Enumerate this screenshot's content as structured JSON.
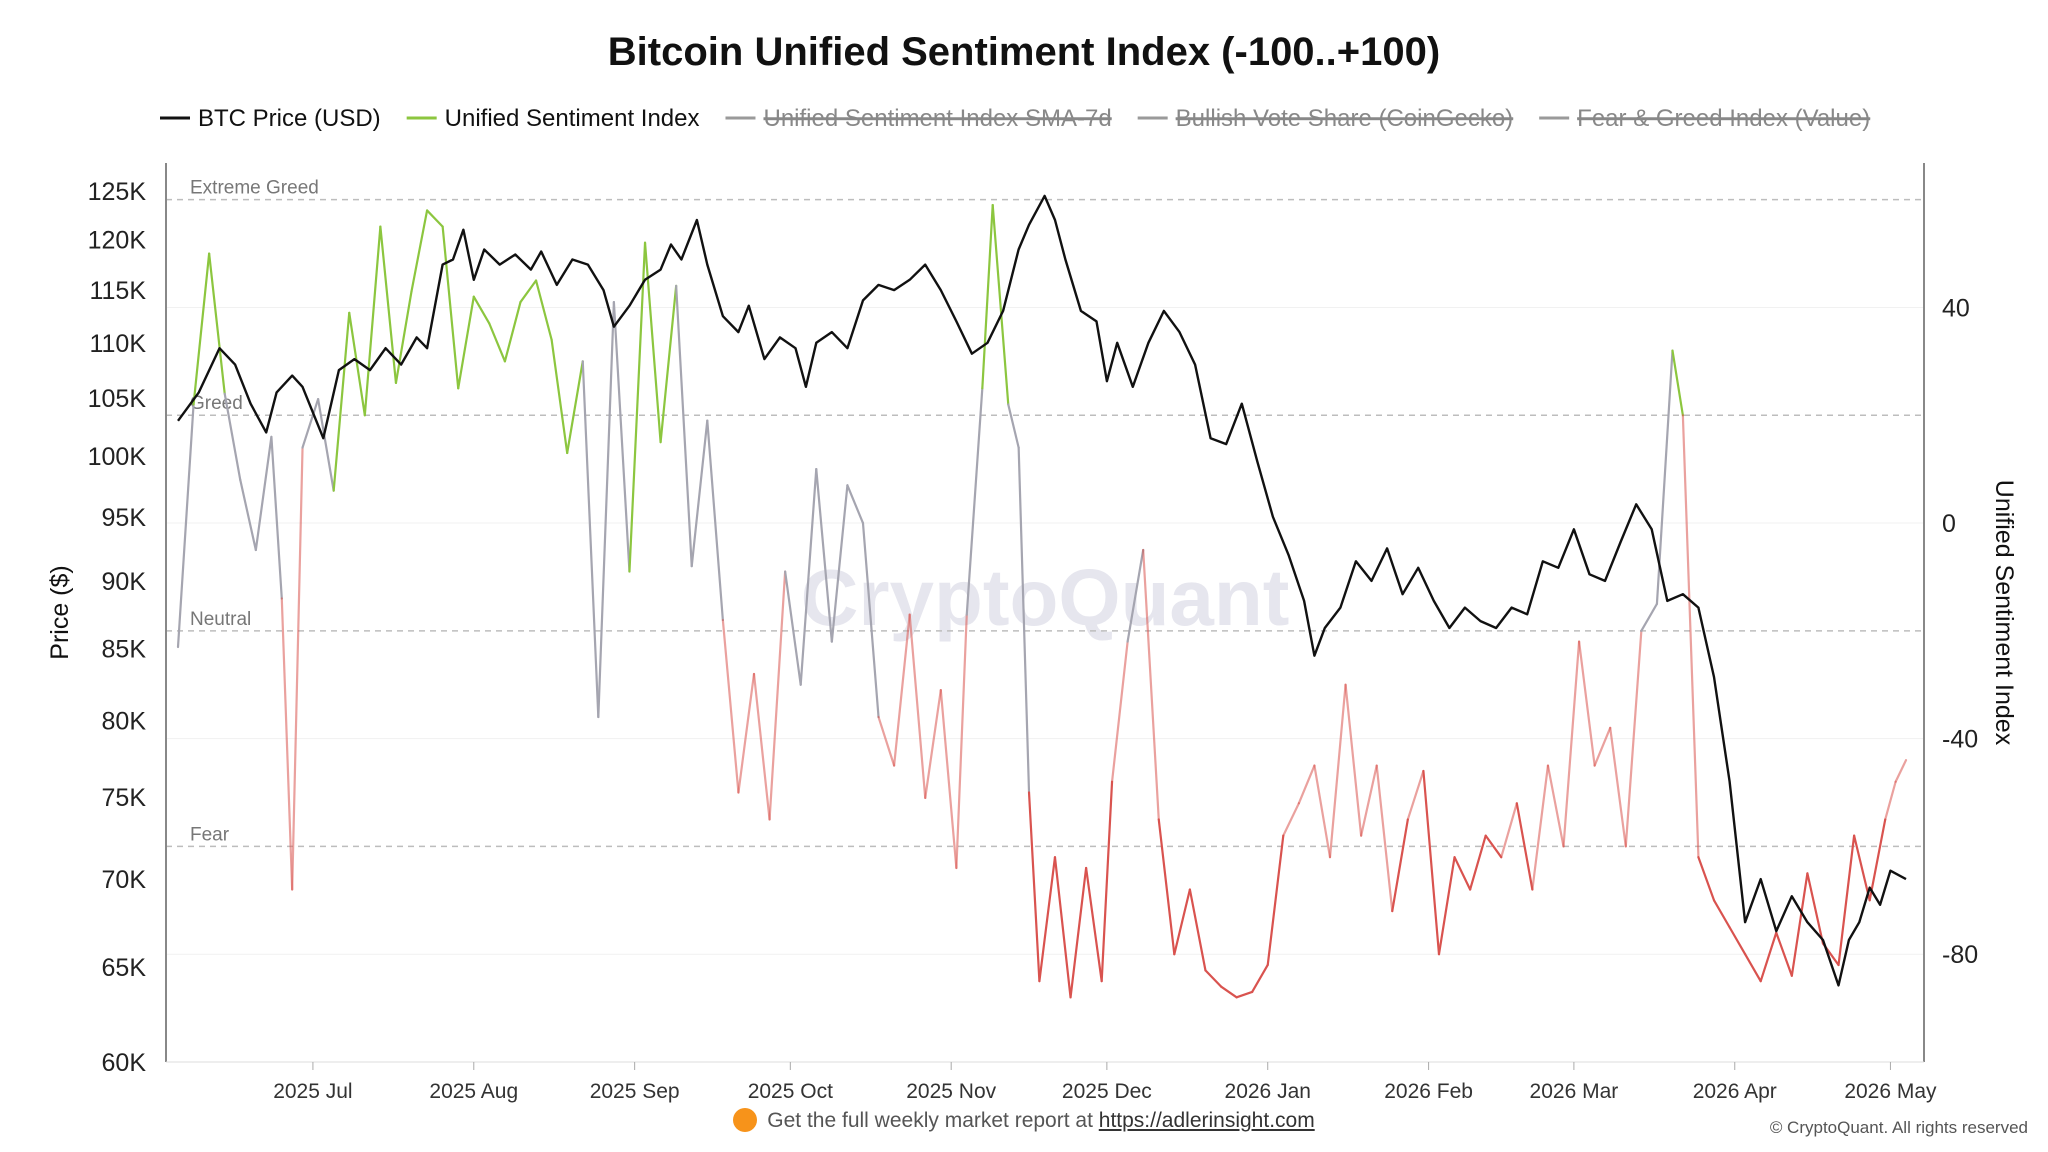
{
  "title": "Bitcoin Unified Sentiment Index (-100..+100)",
  "footer": {
    "text": "Get the full weekly market report at",
    "link": "https://adlerinsight.com",
    "copyright": "© CryptoQuant. All rights reserved"
  },
  "watermark": "CryptoQuant",
  "chart_data": {
    "type": "line",
    "legend_placement": "top",
    "grid": true,
    "y_left": {
      "label": "Price ($)",
      "scale": "log",
      "ticks": [
        60000,
        65000,
        70000,
        75000,
        80000,
        85000,
        90000,
        95000,
        100000,
        105000,
        110000,
        115000,
        120000,
        125000
      ],
      "tick_labels": [
        "60K",
        "65K",
        "70K",
        "75K",
        "80K",
        "85K",
        "90K",
        "95K",
        "100K",
        "105K",
        "110K",
        "115K",
        "120K",
        "125K"
      ],
      "range": [
        60000,
        128000
      ]
    },
    "y_right": {
      "label": "Unified Sentiment Index",
      "ticks": [
        40,
        0,
        -40,
        -80
      ],
      "tick_labels": [
        "40",
        "0",
        "-40",
        "-80"
      ],
      "range": [
        -100,
        66.8
      ]
    },
    "x": {
      "start": "2025-06-05",
      "end": "2026-05-04",
      "ticks": [
        "2025-07-01",
        "2025-08-01",
        "2025-09-01",
        "2025-10-01",
        "2025-11-01",
        "2025-12-01",
        "2026-01-01",
        "2026-02-01",
        "2026-03-01",
        "2026-04-01",
        "2026-05-01"
      ],
      "tick_labels": [
        "2025 Jul",
        "2025 Aug",
        "2025 Sep",
        "2025 Oct",
        "2025 Nov",
        "2025 Dec",
        "2026 Jan",
        "2026 Feb",
        "2026 Mar",
        "2026 Apr",
        "2026 May"
      ]
    },
    "zones": [
      {
        "label": "Extreme Greed",
        "value": 60
      },
      {
        "label": "Greed",
        "value": 20
      },
      {
        "label": "Neutral",
        "value": -20
      },
      {
        "label": "Fear",
        "value": -60
      }
    ],
    "colors": {
      "price": "#111111",
      "greed": "#8cc63f",
      "fear": "#d9534f",
      "neutral": "#a5a5b0",
      "hidden": "#9a9a9a",
      "grid": "#f1f1f1",
      "zone_line": "#bdbdbd"
    },
    "series": [
      {
        "name": "BTC Price (USD)",
        "visible": true,
        "color": "#111111",
        "points": [
          [
            "2025-06-05",
            103000
          ],
          [
            "2025-06-09",
            105500
          ],
          [
            "2025-06-13",
            109500
          ],
          [
            "2025-06-16",
            108000
          ],
          [
            "2025-06-19",
            104500
          ],
          [
            "2025-06-22",
            102000
          ],
          [
            "2025-06-24",
            105500
          ],
          [
            "2025-06-27",
            107000
          ],
          [
            "2025-06-29",
            106000
          ],
          [
            "2025-07-03",
            101500
          ],
          [
            "2025-07-06",
            107500
          ],
          [
            "2025-07-09",
            108500
          ],
          [
            "2025-07-12",
            107500
          ],
          [
            "2025-07-15",
            109500
          ],
          [
            "2025-07-18",
            108000
          ],
          [
            "2025-07-21",
            110500
          ],
          [
            "2025-07-23",
            109500
          ],
          [
            "2025-07-26",
            117500
          ],
          [
            "2025-07-28",
            118000
          ],
          [
            "2025-07-30",
            121000
          ],
          [
            "2025-08-01",
            116000
          ],
          [
            "2025-08-03",
            119000
          ],
          [
            "2025-08-06",
            117500
          ],
          [
            "2025-08-09",
            118500
          ],
          [
            "2025-08-12",
            117000
          ],
          [
            "2025-08-14",
            118800
          ],
          [
            "2025-08-17",
            115500
          ],
          [
            "2025-08-20",
            118000
          ],
          [
            "2025-08-23",
            117500
          ],
          [
            "2025-08-26",
            115000
          ],
          [
            "2025-08-28",
            111500
          ],
          [
            "2025-08-31",
            113500
          ],
          [
            "2025-09-03",
            116000
          ],
          [
            "2025-09-06",
            117000
          ],
          [
            "2025-09-08",
            119500
          ],
          [
            "2025-09-10",
            118000
          ],
          [
            "2025-09-13",
            122000
          ],
          [
            "2025-09-15",
            117500
          ],
          [
            "2025-09-18",
            112500
          ],
          [
            "2025-09-21",
            111000
          ],
          [
            "2025-09-23",
            113500
          ],
          [
            "2025-09-26",
            108500
          ],
          [
            "2025-09-29",
            110500
          ],
          [
            "2025-10-02",
            109500
          ],
          [
            "2025-10-04",
            106000
          ],
          [
            "2025-10-06",
            110000
          ],
          [
            "2025-10-09",
            111000
          ],
          [
            "2025-10-12",
            109500
          ],
          [
            "2025-10-15",
            114000
          ],
          [
            "2025-10-18",
            115500
          ],
          [
            "2025-10-21",
            115000
          ],
          [
            "2025-10-24",
            116000
          ],
          [
            "2025-10-27",
            117500
          ],
          [
            "2025-10-30",
            115000
          ],
          [
            "2025-11-02",
            112000
          ],
          [
            "2025-11-05",
            109000
          ],
          [
            "2025-11-08",
            110000
          ],
          [
            "2025-11-11",
            113000
          ],
          [
            "2025-11-14",
            119000
          ],
          [
            "2025-11-16",
            121500
          ],
          [
            "2025-11-19",
            124500
          ],
          [
            "2025-11-21",
            122000
          ],
          [
            "2025-11-23",
            118000
          ],
          [
            "2025-11-26",
            113000
          ],
          [
            "2025-11-29",
            112000
          ],
          [
            "2025-12-01",
            106500
          ],
          [
            "2025-12-03",
            110000
          ],
          [
            "2025-12-06",
            106000
          ],
          [
            "2025-12-09",
            110000
          ],
          [
            "2025-12-12",
            113000
          ],
          [
            "2025-12-15",
            111000
          ],
          [
            "2025-12-18",
            108000
          ],
          [
            "2025-12-21",
            101500
          ],
          [
            "2025-12-24",
            101000
          ],
          [
            "2025-12-27",
            104500
          ],
          [
            "2025-12-30",
            99500
          ],
          [
            "2026-01-02",
            95000
          ],
          [
            "2026-01-05",
            92000
          ],
          [
            "2026-01-08",
            88500
          ],
          [
            "2026-01-10",
            84500
          ],
          [
            "2026-01-12",
            86500
          ],
          [
            "2026-01-15",
            88000
          ],
          [
            "2026-01-18",
            91500
          ],
          [
            "2026-01-21",
            90000
          ],
          [
            "2026-01-24",
            92500
          ],
          [
            "2026-01-27",
            89000
          ],
          [
            "2026-01-30",
            91000
          ],
          [
            "2026-02-02",
            88500
          ],
          [
            "2026-02-05",
            86500
          ],
          [
            "2026-02-08",
            88000
          ],
          [
            "2026-02-11",
            87000
          ],
          [
            "2026-02-14",
            86500
          ],
          [
            "2026-02-17",
            88000
          ],
          [
            "2026-02-20",
            87500
          ],
          [
            "2026-02-23",
            91500
          ],
          [
            "2026-02-26",
            91000
          ],
          [
            "2026-03-01",
            94000
          ],
          [
            "2026-03-04",
            90500
          ],
          [
            "2026-03-07",
            90000
          ],
          [
            "2026-03-10",
            93000
          ],
          [
            "2026-03-13",
            96000
          ],
          [
            "2026-03-16",
            94000
          ],
          [
            "2026-03-19",
            88500
          ],
          [
            "2026-03-22",
            89000
          ],
          [
            "2026-03-25",
            88000
          ],
          [
            "2026-03-28",
            83000
          ],
          [
            "2026-03-31",
            76000
          ],
          [
            "2026-04-03",
            67500
          ],
          [
            "2026-04-06",
            70000
          ],
          [
            "2026-04-09",
            67000
          ],
          [
            "2026-04-12",
            69000
          ],
          [
            "2026-04-15",
            67500
          ],
          [
            "2026-04-18",
            66500
          ],
          [
            "2026-04-21",
            64000
          ],
          [
            "2026-04-23",
            66500
          ],
          [
            "2026-04-25",
            67500
          ],
          [
            "2026-04-27",
            69500
          ],
          [
            "2026-04-29",
            68500
          ],
          [
            "2026-05-01",
            70500
          ],
          [
            "2026-05-04",
            70000
          ]
        ]
      },
      {
        "name": "Unified Sentiment Index",
        "visible": true,
        "color": "#8cc63f",
        "points": [
          [
            "2025-06-05",
            -23
          ],
          [
            "2025-06-08",
            22
          ],
          [
            "2025-06-11",
            50
          ],
          [
            "2025-06-14",
            24
          ],
          [
            "2025-06-17",
            8
          ],
          [
            "2025-06-20",
            -5
          ],
          [
            "2025-06-23",
            16
          ],
          [
            "2025-06-25",
            -14
          ],
          [
            "2025-06-27",
            -68
          ],
          [
            "2025-06-29",
            14
          ],
          [
            "2025-07-02",
            23
          ],
          [
            "2025-07-05",
            6
          ],
          [
            "2025-07-08",
            39
          ],
          [
            "2025-07-11",
            20
          ],
          [
            "2025-07-14",
            55
          ],
          [
            "2025-07-17",
            26
          ],
          [
            "2025-07-20",
            43
          ],
          [
            "2025-07-23",
            58
          ],
          [
            "2025-07-26",
            55
          ],
          [
            "2025-07-29",
            25
          ],
          [
            "2025-08-01",
            42
          ],
          [
            "2025-08-04",
            37
          ],
          [
            "2025-08-07",
            30
          ],
          [
            "2025-08-10",
            41
          ],
          [
            "2025-08-13",
            45
          ],
          [
            "2025-08-16",
            34
          ],
          [
            "2025-08-19",
            13
          ],
          [
            "2025-08-22",
            30
          ],
          [
            "2025-08-25",
            -36
          ],
          [
            "2025-08-28",
            41
          ],
          [
            "2025-08-31",
            -9
          ],
          [
            "2025-09-03",
            52
          ],
          [
            "2025-09-06",
            15
          ],
          [
            "2025-09-09",
            44
          ],
          [
            "2025-09-12",
            -8
          ],
          [
            "2025-09-15",
            19
          ],
          [
            "2025-09-18",
            -18
          ],
          [
            "2025-09-21",
            -50
          ],
          [
            "2025-09-24",
            -28
          ],
          [
            "2025-09-27",
            -55
          ],
          [
            "2025-09-30",
            -9
          ],
          [
            "2025-10-03",
            -30
          ],
          [
            "2025-10-06",
            10
          ],
          [
            "2025-10-09",
            -22
          ],
          [
            "2025-10-12",
            7
          ],
          [
            "2025-10-15",
            0
          ],
          [
            "2025-10-18",
            -36
          ],
          [
            "2025-10-21",
            -45
          ],
          [
            "2025-10-24",
            -17
          ],
          [
            "2025-10-27",
            -51
          ],
          [
            "2025-10-30",
            -31
          ],
          [
            "2025-11-02",
            -64
          ],
          [
            "2025-11-04",
            -17
          ],
          [
            "2025-11-07",
            25
          ],
          [
            "2025-11-09",
            59
          ],
          [
            "2025-11-12",
            22
          ],
          [
            "2025-11-14",
            14
          ],
          [
            "2025-11-16",
            -50
          ],
          [
            "2025-11-18",
            -85
          ],
          [
            "2025-11-21",
            -62
          ],
          [
            "2025-11-24",
            -88
          ],
          [
            "2025-11-27",
            -64
          ],
          [
            "2025-11-30",
            -85
          ],
          [
            "2025-12-02",
            -48
          ],
          [
            "2025-12-05",
            -22
          ],
          [
            "2025-12-08",
            -5
          ],
          [
            "2025-12-11",
            -55
          ],
          [
            "2025-12-14",
            -80
          ],
          [
            "2025-12-17",
            -68
          ],
          [
            "2025-12-20",
            -83
          ],
          [
            "2025-12-23",
            -86
          ],
          [
            "2025-12-26",
            -88
          ],
          [
            "2025-12-29",
            -87
          ],
          [
            "2026-01-01",
            -82
          ],
          [
            "2026-01-04",
            -58
          ],
          [
            "2026-01-07",
            -52
          ],
          [
            "2026-01-10",
            -45
          ],
          [
            "2026-01-13",
            -62
          ],
          [
            "2026-01-16",
            -30
          ],
          [
            "2026-01-19",
            -58
          ],
          [
            "2026-01-22",
            -45
          ],
          [
            "2026-01-25",
            -72
          ],
          [
            "2026-01-28",
            -55
          ],
          [
            "2026-01-31",
            -46
          ],
          [
            "2026-02-03",
            -80
          ],
          [
            "2026-02-06",
            -62
          ],
          [
            "2026-02-09",
            -68
          ],
          [
            "2026-02-12",
            -58
          ],
          [
            "2026-02-15",
            -62
          ],
          [
            "2026-02-18",
            -52
          ],
          [
            "2026-02-21",
            -68
          ],
          [
            "2026-02-24",
            -45
          ],
          [
            "2026-02-27",
            -60
          ],
          [
            "2026-03-02",
            -22
          ],
          [
            "2026-03-05",
            -45
          ],
          [
            "2026-03-08",
            -38
          ],
          [
            "2026-03-11",
            -60
          ],
          [
            "2026-03-14",
            -20
          ],
          [
            "2026-03-17",
            -15
          ],
          [
            "2026-03-20",
            32
          ],
          [
            "2026-03-22",
            20
          ],
          [
            "2026-03-25",
            -62
          ],
          [
            "2026-03-28",
            -70
          ],
          [
            "2026-03-31",
            -75
          ],
          [
            "2026-04-03",
            -80
          ],
          [
            "2026-04-06",
            -85
          ],
          [
            "2026-04-09",
            -76
          ],
          [
            "2026-04-12",
            -84
          ],
          [
            "2026-04-15",
            -65
          ],
          [
            "2026-04-18",
            -78
          ],
          [
            "2026-04-21",
            -82
          ],
          [
            "2026-04-24",
            -58
          ],
          [
            "2026-04-27",
            -70
          ],
          [
            "2026-04-30",
            -55
          ],
          [
            "2026-05-02",
            -48
          ],
          [
            "2026-05-04",
            -44
          ]
        ]
      },
      {
        "name": "Unified Sentiment Index SMA-7d",
        "visible": false,
        "color": "#9a9a9a"
      },
      {
        "name": "Bullish Vote Share (CoinGecko)",
        "visible": false,
        "color": "#9a9a9a"
      },
      {
        "name": "Fear & Greed Index (Value)",
        "visible": false,
        "color": "#9a9a9a"
      }
    ]
  }
}
